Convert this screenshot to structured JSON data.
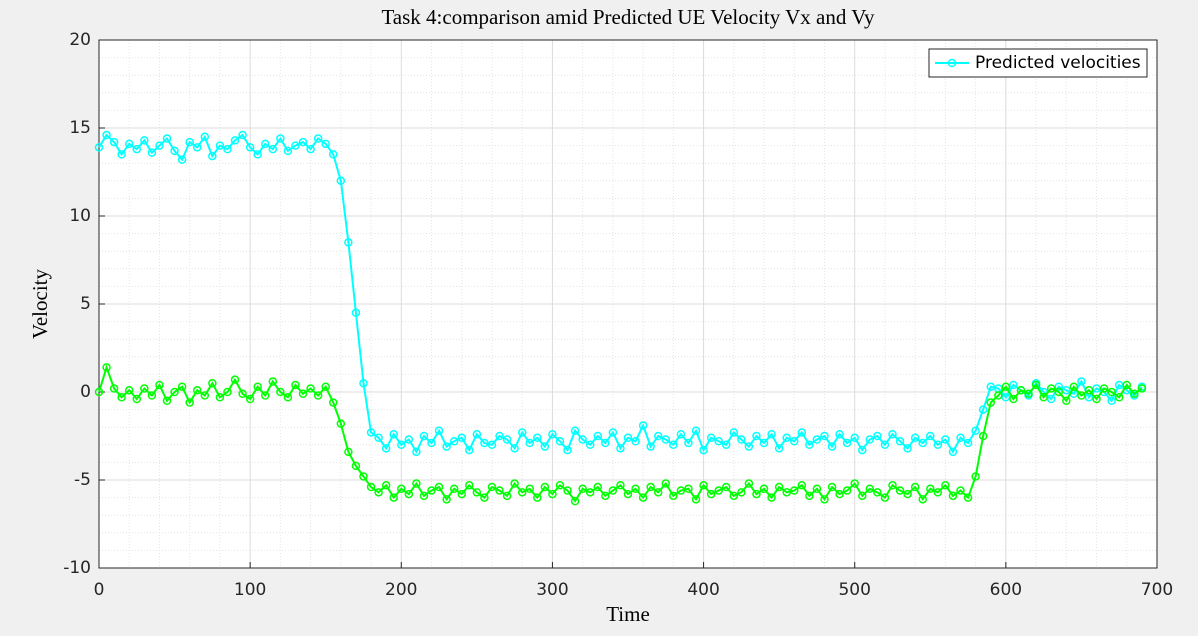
{
  "chart_data": {
    "type": "line",
    "title": "Task 4:comparison amid Predicted UE Velocity Vx and Vy",
    "x_label": "Time",
    "y_label": "Velocity",
    "x": [
      0,
      5,
      10,
      15,
      20,
      25,
      30,
      35,
      40,
      45,
      50,
      55,
      60,
      65,
      70,
      75,
      80,
      85,
      90,
      95,
      100,
      105,
      110,
      115,
      120,
      125,
      130,
      135,
      140,
      145,
      150,
      155,
      160,
      165,
      170,
      175,
      180,
      185,
      190,
      195,
      200,
      205,
      210,
      215,
      220,
      225,
      230,
      235,
      240,
      245,
      250,
      255,
      260,
      265,
      270,
      275,
      280,
      285,
      290,
      295,
      300,
      305,
      310,
      315,
      320,
      325,
      330,
      335,
      340,
      345,
      350,
      355,
      360,
      365,
      370,
      375,
      380,
      385,
      390,
      395,
      400,
      405,
      410,
      415,
      420,
      425,
      430,
      435,
      440,
      445,
      450,
      455,
      460,
      465,
      470,
      475,
      480,
      485,
      490,
      495,
      500,
      505,
      510,
      515,
      520,
      525,
      530,
      535,
      540,
      545,
      550,
      555,
      560,
      565,
      570,
      575,
      580,
      585,
      590,
      595,
      600,
      605,
      610,
      615,
      620,
      625,
      630,
      635,
      640,
      645,
      650,
      655,
      660,
      665,
      670,
      675,
      680,
      685,
      690
    ],
    "series": [
      {
        "name": "Predicted velocities",
        "color": "#00ffff",
        "values": [
          13.9,
          14.6,
          14.2,
          13.5,
          14.1,
          13.8,
          14.3,
          13.6,
          14.0,
          14.4,
          13.7,
          13.2,
          14.2,
          13.9,
          14.5,
          13.4,
          14.0,
          13.8,
          14.3,
          14.6,
          13.9,
          13.5,
          14.1,
          13.8,
          14.4,
          13.7,
          14.0,
          14.2,
          13.8,
          14.4,
          14.1,
          13.5,
          12.0,
          8.5,
          4.5,
          0.5,
          -2.3,
          -2.6,
          -3.2,
          -2.4,
          -3.0,
          -2.7,
          -3.4,
          -2.5,
          -2.9,
          -2.2,
          -3.1,
          -2.8,
          -2.6,
          -3.3,
          -2.4,
          -2.9,
          -3.0,
          -2.5,
          -2.7,
          -3.2,
          -2.3,
          -2.9,
          -2.6,
          -3.1,
          -2.4,
          -2.8,
          -3.3,
          -2.2,
          -2.7,
          -3.0,
          -2.5,
          -2.9,
          -2.3,
          -3.2,
          -2.6,
          -2.8,
          -1.9,
          -3.1,
          -2.5,
          -2.7,
          -3.0,
          -2.4,
          -2.9,
          -2.2,
          -3.3,
          -2.6,
          -2.8,
          -3.0,
          -2.3,
          -2.7,
          -3.1,
          -2.5,
          -2.9,
          -2.4,
          -3.2,
          -2.6,
          -2.8,
          -2.3,
          -3.0,
          -2.7,
          -2.5,
          -3.1,
          -2.4,
          -2.9,
          -2.6,
          -3.3,
          -2.7,
          -2.5,
          -3.0,
          -2.4,
          -2.8,
          -3.2,
          -2.6,
          -2.9,
          -2.5,
          -3.0,
          -2.7,
          -3.4,
          -2.6,
          -2.9,
          -2.2,
          -1.0,
          0.3,
          0.2,
          -0.3,
          0.4,
          0.1,
          -0.2,
          0.5,
          0.0,
          -0.4,
          0.3,
          0.1,
          -0.1,
          0.6,
          -0.3,
          0.2,
          0.0,
          -0.5,
          0.4,
          0.1,
          -0.2,
          0.3
        ]
      },
      {
        "color": "#00ff00",
        "values": [
          0.0,
          1.4,
          0.2,
          -0.3,
          0.1,
          -0.4,
          0.2,
          -0.2,
          0.4,
          -0.5,
          0.0,
          0.3,
          -0.6,
          0.1,
          -0.2,
          0.5,
          -0.3,
          0.0,
          0.7,
          -0.1,
          -0.4,
          0.3,
          -0.2,
          0.6,
          0.0,
          -0.3,
          0.4,
          -0.1,
          0.2,
          -0.2,
          0.3,
          -0.6,
          -1.8,
          -3.4,
          -4.2,
          -4.8,
          -5.4,
          -5.7,
          -5.3,
          -6.0,
          -5.5,
          -5.8,
          -5.2,
          -5.9,
          -5.6,
          -5.4,
          -6.1,
          -5.5,
          -5.8,
          -5.3,
          -5.7,
          -6.0,
          -5.4,
          -5.6,
          -5.9,
          -5.2,
          -5.7,
          -5.5,
          -6.0,
          -5.4,
          -5.8,
          -5.3,
          -5.6,
          -6.2,
          -5.5,
          -5.7,
          -5.4,
          -5.9,
          -5.6,
          -5.3,
          -5.8,
          -5.5,
          -6.0,
          -5.4,
          -5.7,
          -5.2,
          -5.9,
          -5.6,
          -5.5,
          -6.1,
          -5.3,
          -5.8,
          -5.6,
          -5.4,
          -5.9,
          -5.7,
          -5.2,
          -5.8,
          -5.5,
          -6.0,
          -5.4,
          -5.7,
          -5.6,
          -5.3,
          -5.9,
          -5.5,
          -6.1,
          -5.4,
          -5.8,
          -5.6,
          -5.2,
          -5.9,
          -5.5,
          -5.7,
          -6.0,
          -5.3,
          -5.6,
          -5.8,
          -5.4,
          -6.1,
          -5.5,
          -5.7,
          -5.3,
          -5.9,
          -5.6,
          -6.0,
          -4.8,
          -2.5,
          -0.6,
          -0.2,
          0.3,
          -0.4,
          0.1,
          -0.1,
          0.4,
          -0.3,
          0.2,
          0.0,
          -0.5,
          0.3,
          -0.2,
          0.1,
          -0.4,
          0.2,
          0.0,
          -0.3,
          0.4,
          -0.1,
          0.2
        ]
      }
    ],
    "xlim": [
      0,
      700
    ],
    "xticks": [
      0,
      100,
      200,
      300,
      400,
      500,
      600,
      700
    ],
    "ylim": [
      -10,
      20
    ],
    "yticks": [
      -10,
      -5,
      0,
      5,
      10,
      15,
      20
    ],
    "grid": true,
    "minor_grid": true,
    "legend": "northeast"
  }
}
